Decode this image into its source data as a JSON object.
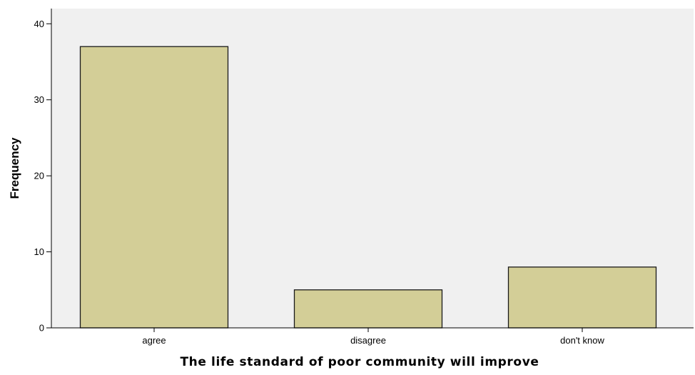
{
  "chart_data": {
    "type": "bar",
    "title": "",
    "xlabel": "The life standard of poor community will improve",
    "ylabel": "Frequency",
    "categories": [
      "agree",
      "disagree",
      "don't know"
    ],
    "values": [
      37,
      5,
      8
    ],
    "ylim": [
      0,
      42
    ],
    "yticks": [
      0,
      10,
      20,
      30,
      40
    ],
    "grid": false,
    "legend": "none",
    "colors": {
      "plot_background": "#f0f0f0",
      "bar_fill": "#d3ce97",
      "bar_stroke": "#1a1a1a",
      "axis": "#000000"
    }
  }
}
